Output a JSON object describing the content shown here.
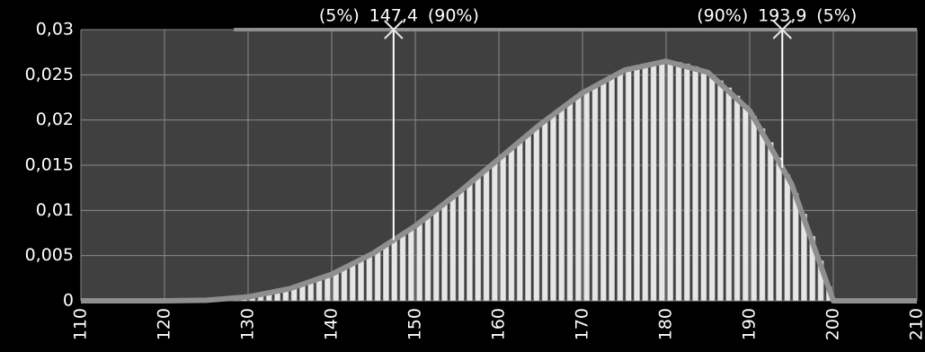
{
  "chart_data": {
    "type": "histogram",
    "bins": [
      120,
      121,
      122,
      123,
      124,
      125,
      126,
      127,
      128,
      129,
      130,
      131,
      132,
      133,
      134,
      135,
      136,
      137,
      138,
      139,
      140,
      141,
      142,
      143,
      144,
      145,
      146,
      147,
      148,
      149,
      150,
      151,
      152,
      153,
      154,
      155,
      156,
      157,
      158,
      159,
      160,
      161,
      162,
      163,
      164,
      165,
      166,
      167,
      168,
      169,
      170,
      171,
      172,
      173,
      174,
      175,
      176,
      177,
      178,
      179,
      180,
      181,
      182,
      183,
      184,
      185,
      186,
      187,
      188,
      189,
      190,
      191,
      192,
      193,
      194,
      195,
      196,
      197,
      198,
      199,
      200
    ],
    "values": [
      0,
      0,
      1e-05,
      2e-05,
      4e-05,
      8e-05,
      0.00012,
      0.00019,
      0.00027,
      0.00037,
      0.00049,
      0.00064,
      0.00081,
      0.001,
      0.00122,
      0.00147,
      0.00175,
      0.00205,
      0.00239,
      0.00275,
      0.00314,
      0.00357,
      0.00402,
      0.0045,
      0.00501,
      0.00554,
      0.00611,
      0.0067,
      0.00731,
      0.00795,
      0.00862,
      0.0093,
      0.01,
      0.01072,
      0.01146,
      0.01221,
      0.01298,
      0.01375,
      0.01453,
      0.01531,
      0.0161,
      0.01688,
      0.01766,
      0.01843,
      0.01919,
      0.01994,
      0.02066,
      0.02137,
      0.02204,
      0.02269,
      0.02331,
      0.02388,
      0.02441,
      0.02489,
      0.02532,
      0.02569,
      0.026,
      0.02624,
      0.0264,
      0.02649,
      0.02649,
      0.0264,
      0.02621,
      0.02592,
      0.02551,
      0.025,
      0.02435,
      0.02358,
      0.02268,
      0.02162,
      0.02042,
      0.01906,
      0.01753,
      0.01583,
      0.01395,
      0.01188,
      0.00961,
      0.00714,
      0.00445,
      0.00154
    ],
    "color": "#e6e6e6",
    "curve": {
      "color": "#8f8f8f",
      "x": [
        110,
        115,
        120,
        125,
        130,
        135,
        140,
        145,
        150,
        155,
        160,
        165,
        170,
        175,
        180,
        185,
        190,
        195,
        200,
        205,
        210
      ],
      "values": [
        0,
        0,
        0,
        6e-05,
        0.00043,
        0.00135,
        0.00294,
        0.00527,
        0.00828,
        0.01184,
        0.0157,
        0.01956,
        0.023,
        0.02551,
        0.0265,
        0.02527,
        0.02104,
        0.01294,
        0,
        0,
        0
      ]
    },
    "range_line": {
      "x": [
        128.3,
        210
      ],
      "y": 0.03,
      "color": "#8f8f8f"
    },
    "markers": [
      {
        "x": 147.4,
        "label": "147,4",
        "left_label": "(5%)",
        "right_label": "(90%)"
      },
      {
        "x": 193.9,
        "label": "193,9",
        "left_label": "(90%)",
        "right_label": "(5%)"
      }
    ],
    "xlim": [
      110,
      210
    ],
    "xticks": [
      110,
      120,
      130,
      140,
      150,
      160,
      170,
      180,
      190,
      200,
      210
    ],
    "ylim": [
      0,
      0.03
    ],
    "yticks": [
      0,
      {
        "value": 0.005,
        "label": "0,005"
      },
      {
        "value": 0.01,
        "label": "0,01"
      },
      {
        "value": 0.015,
        "label": "0,015"
      },
      {
        "value": 0.02,
        "label": "0,02"
      },
      {
        "value": 0.025,
        "label": "0,025"
      },
      {
        "value": 0.03,
        "label": "0,03"
      }
    ],
    "grid": true
  }
}
